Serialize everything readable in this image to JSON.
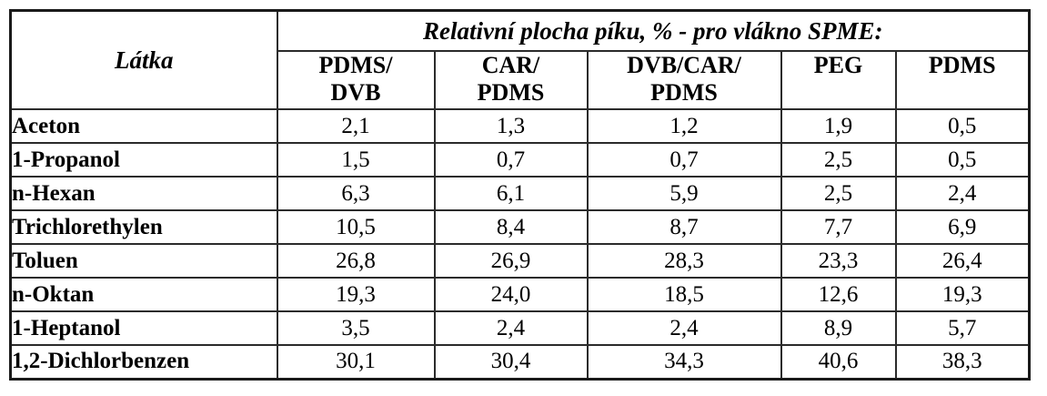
{
  "table": {
    "corner_label": "Látka",
    "span_header": "Relativní plocha píku, % - pro vlákno SPME:",
    "columns": [
      {
        "id": "pdms-dvb",
        "label": "PDMS/\nDVB"
      },
      {
        "id": "car-pdms",
        "label": "CAR/\nPDMS"
      },
      {
        "id": "dvb-car-pdms",
        "label": "DVB/CAR/\nPDMS"
      },
      {
        "id": "peg",
        "label": "PEG"
      },
      {
        "id": "pdms",
        "label": "PDMS"
      }
    ],
    "rows": [
      {
        "label": "Aceton",
        "values": [
          "2,1",
          "1,3",
          "1,2",
          "1,9",
          "0,5"
        ]
      },
      {
        "label": "1-Propanol",
        "values": [
          "1,5",
          "0,7",
          "0,7",
          "2,5",
          "0,5"
        ]
      },
      {
        "label": "n-Hexan",
        "values": [
          "6,3",
          "6,1",
          "5,9",
          "2,5",
          "2,4"
        ]
      },
      {
        "label": "Trichlorethylen",
        "values": [
          "10,5",
          "8,4",
          "8,7",
          "7,7",
          "6,9"
        ]
      },
      {
        "label": "Toluen",
        "values": [
          "26,8",
          "26,9",
          "28,3",
          "23,3",
          "26,4"
        ]
      },
      {
        "label": "n-Oktan",
        "values": [
          "19,3",
          "24,0",
          "18,5",
          "12,6",
          "19,3"
        ]
      },
      {
        "label": "1-Heptanol",
        "values": [
          "3,5",
          "2,4",
          "2,4",
          "8,9",
          "5,7"
        ]
      },
      {
        "label": "1,2-Dichlorbenzen",
        "values": [
          "30,1",
          "30,4",
          "34,3",
          "40,6",
          "38,3"
        ]
      }
    ]
  },
  "colors": {
    "border": "#2b2b2b",
    "outer_border": "#1a1a1a",
    "text": "#000000",
    "background": "#ffffff"
  },
  "chart_data": {
    "type": "table",
    "title": "Relativní plocha píku, % - pro vlákno SPME:",
    "row_header_label": "Látka",
    "categories": [
      "Aceton",
      "1-Propanol",
      "n-Hexan",
      "Trichlorethylen",
      "Toluen",
      "n-Oktan",
      "1-Heptanol",
      "1,2-Dichlorbenzen"
    ],
    "series": [
      {
        "name": "PDMS/DVB",
        "values": [
          2.1,
          1.5,
          6.3,
          10.5,
          26.8,
          19.3,
          3.5,
          30.1
        ]
      },
      {
        "name": "CAR/PDMS",
        "values": [
          1.3,
          0.7,
          6.1,
          8.4,
          26.9,
          24.0,
          2.4,
          30.4
        ]
      },
      {
        "name": "DVB/CAR/PDMS",
        "values": [
          1.2,
          0.7,
          5.9,
          8.7,
          28.3,
          18.5,
          2.4,
          34.3
        ]
      },
      {
        "name": "PEG",
        "values": [
          1.9,
          2.5,
          2.5,
          7.7,
          23.3,
          12.6,
          8.9,
          40.6
        ]
      },
      {
        "name": "PDMS",
        "values": [
          0.5,
          0.5,
          2.4,
          6.9,
          26.4,
          19.3,
          5.7,
          38.3
        ]
      }
    ],
    "value_unit": "%",
    "decimal_separator": ","
  }
}
